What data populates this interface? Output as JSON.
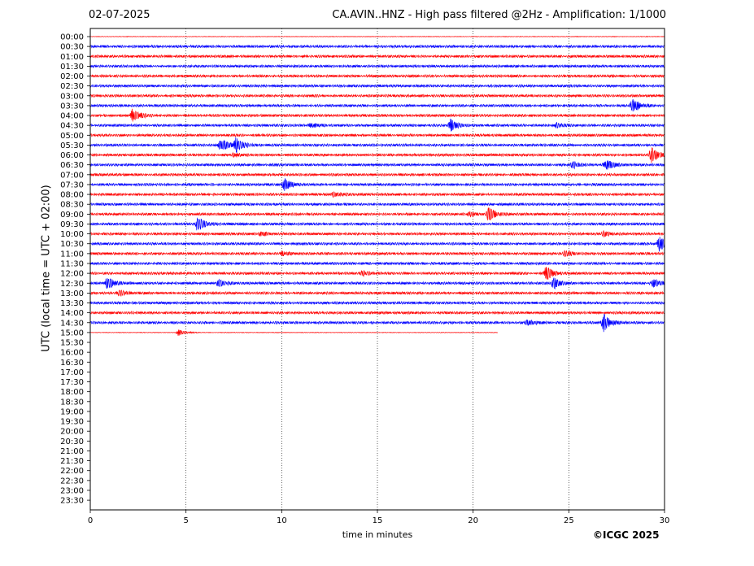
{
  "header": {
    "date": "02-07-2025",
    "title": "CA.AVIN..HNZ - High pass filtered @2Hz - Amplification: 1/1000"
  },
  "footer": {
    "credit": "©ICGC 2025"
  },
  "chart_data": {
    "type": "line",
    "title": "CA.AVIN..HNZ - High pass filtered @2Hz - Amplification: 1/1000",
    "xlabel": "time in minutes",
    "ylabel": "UTC (local time = UTC + 02:00)",
    "xlim": [
      0,
      30
    ],
    "x_ticks": [
      0,
      5,
      10,
      15,
      20,
      25,
      30
    ],
    "grid": "vertical dotted lines at every 5 minutes",
    "row_labels": [
      "00:00",
      "00:30",
      "01:00",
      "01:30",
      "02:00",
      "02:30",
      "03:00",
      "03:30",
      "04:00",
      "04:30",
      "05:00",
      "05:30",
      "06:00",
      "06:30",
      "07:00",
      "07:30",
      "08:00",
      "08:30",
      "09:00",
      "09:30",
      "10:00",
      "10:30",
      "11:00",
      "11:30",
      "12:00",
      "12:30",
      "13:00",
      "13:30",
      "14:00",
      "14:30",
      "15:00",
      "15:30",
      "16:00",
      "16:30",
      "17:00",
      "17:30",
      "18:00",
      "18:30",
      "19:00",
      "19:30",
      "20:00",
      "20:30",
      "21:00",
      "21:30",
      "22:00",
      "22:30",
      "23:00",
      "23:30"
    ],
    "trace_colors": [
      "#ff0000",
      "#0000ff"
    ],
    "last_row_index": 30,
    "last_row_end_minute": 21.3,
    "events": [
      {
        "row": 7,
        "minute": 28.3,
        "amplitude": 10
      },
      {
        "row": 8,
        "minute": 2.2,
        "amplitude": 9
      },
      {
        "row": 9,
        "minute": 18.8,
        "amplitude": 9
      },
      {
        "row": 9,
        "minute": 11.5,
        "amplitude": 3
      },
      {
        "row": 9,
        "minute": 24.3,
        "amplitude": 3
      },
      {
        "row": 11,
        "minute": 6.8,
        "amplitude": 10
      },
      {
        "row": 11,
        "minute": 7.6,
        "amplitude": 9
      },
      {
        "row": 12,
        "minute": 29.3,
        "amplitude": 10
      },
      {
        "row": 12,
        "minute": 7.5,
        "amplitude": 3
      },
      {
        "row": 13,
        "minute": 26.9,
        "amplitude": 9
      },
      {
        "row": 13,
        "minute": 25.2,
        "amplitude": 4
      },
      {
        "row": 15,
        "minute": 10.1,
        "amplitude": 9
      },
      {
        "row": 16,
        "minute": 12.7,
        "amplitude": 3
      },
      {
        "row": 18,
        "minute": 20.8,
        "amplitude": 10
      },
      {
        "row": 18,
        "minute": 19.8,
        "amplitude": 3
      },
      {
        "row": 19,
        "minute": 5.6,
        "amplitude": 10
      },
      {
        "row": 20,
        "minute": 26.8,
        "amplitude": 3
      },
      {
        "row": 20,
        "minute": 8.9,
        "amplitude": 3
      },
      {
        "row": 21,
        "minute": 29.7,
        "amplitude": 12
      },
      {
        "row": 22,
        "minute": 24.8,
        "amplitude": 4
      },
      {
        "row": 22,
        "minute": 10.0,
        "amplitude": 3
      },
      {
        "row": 24,
        "minute": 23.8,
        "amplitude": 10
      },
      {
        "row": 24,
        "minute": 14.2,
        "amplitude": 3
      },
      {
        "row": 25,
        "minute": 0.9,
        "amplitude": 9
      },
      {
        "row": 25,
        "minute": 24.2,
        "amplitude": 8
      },
      {
        "row": 25,
        "minute": 29.4,
        "amplitude": 5
      },
      {
        "row": 25,
        "minute": 6.7,
        "amplitude": 5
      },
      {
        "row": 26,
        "minute": 1.5,
        "amplitude": 4
      },
      {
        "row": 29,
        "minute": 26.8,
        "amplitude": 12
      },
      {
        "row": 29,
        "minute": 22.8,
        "amplitude": 4
      },
      {
        "row": 30,
        "minute": 4.6,
        "amplitude": 5
      }
    ]
  }
}
